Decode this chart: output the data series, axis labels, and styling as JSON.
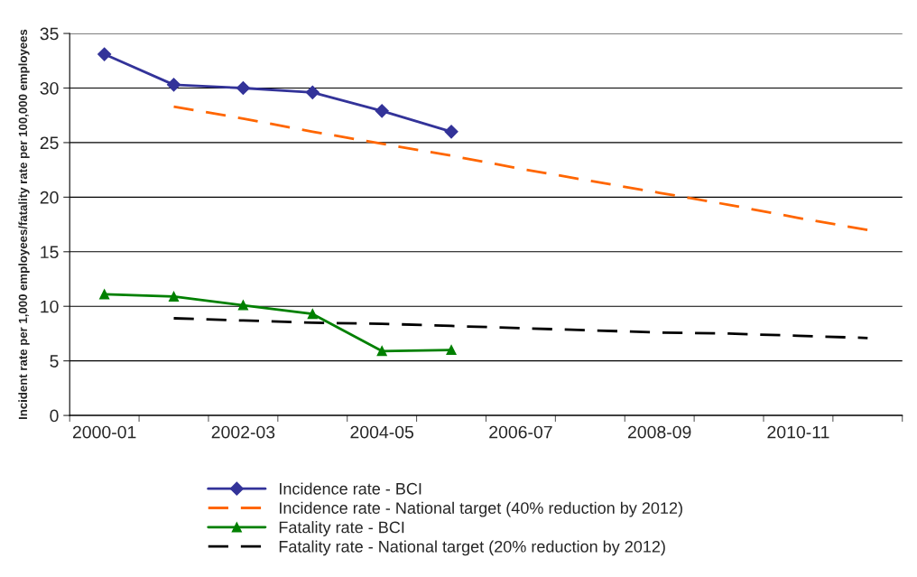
{
  "chart_data": {
    "type": "line",
    "ylabel": "Incident rate per 1,000 employees/fatality rate per 100,000 employees",
    "categories": [
      "2000-01",
      null,
      "2002-03",
      null,
      "2004-05",
      null,
      "2006-07",
      null,
      "2008-09",
      null,
      "2010-11",
      null
    ],
    "series": [
      {
        "name": "Incidence rate - BCI",
        "color": "#333399",
        "marker": "diamond",
        "line_style": "solid",
        "values": [
          33.1,
          30.3,
          30.0,
          29.6,
          27.9,
          26.0,
          null,
          null,
          null,
          null,
          null,
          null
        ]
      },
      {
        "name": "Incidence rate - National target (40% reduction by 2012)",
        "color": "#ff6600",
        "marker": "none",
        "line_style": "dashed",
        "values": [
          null,
          28.3,
          27.2,
          26.0,
          24.9,
          23.8,
          22.6,
          21.5,
          20.4,
          19.3,
          18.1,
          17.0
        ]
      },
      {
        "name": "Fatality rate - BCI",
        "color": "#008000",
        "marker": "triangle",
        "line_style": "solid",
        "values": [
          11.1,
          10.9,
          10.1,
          9.3,
          5.9,
          6.0,
          null,
          null,
          null,
          null,
          null,
          null
        ]
      },
      {
        "name": "Fatality rate - National target (20% reduction by 2012)",
        "color": "#000000",
        "marker": "none",
        "line_style": "dashed",
        "values": [
          null,
          8.9,
          8.7,
          8.5,
          8.4,
          8.2,
          8.0,
          7.8,
          7.6,
          7.5,
          7.3,
          7.1
        ]
      }
    ],
    "ylim": [
      0,
      35
    ],
    "yticks": [
      0,
      5,
      10,
      15,
      20,
      25,
      30,
      35
    ],
    "grid": "y",
    "legend": "bottom"
  }
}
